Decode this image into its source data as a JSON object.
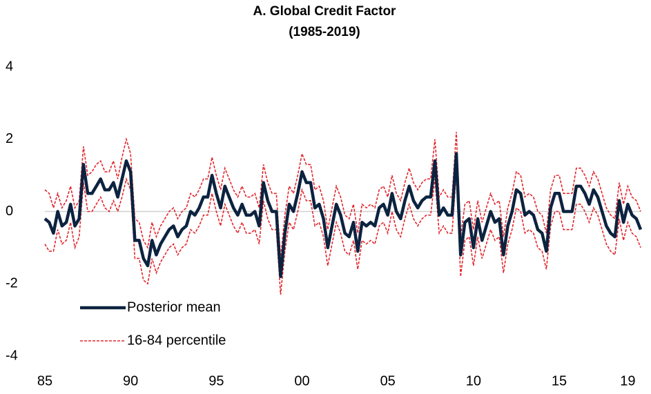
{
  "chart_data": {
    "type": "line",
    "title": "A. Global Credit Factor",
    "subtitle": "(1985-2019)",
    "x": [
      1985,
      1985.25,
      1985.5,
      1985.75,
      1986,
      1986.25,
      1986.5,
      1986.75,
      1987,
      1987.25,
      1987.5,
      1987.75,
      1988,
      1988.25,
      1988.5,
      1988.75,
      1989,
      1989.25,
      1989.5,
      1989.75,
      1990,
      1990.25,
      1990.5,
      1990.75,
      1991,
      1991.25,
      1991.5,
      1991.75,
      1992,
      1992.25,
      1992.5,
      1992.75,
      1993,
      1993.25,
      1993.5,
      1993.75,
      1994,
      1994.25,
      1994.5,
      1994.75,
      1995,
      1995.25,
      1995.5,
      1995.75,
      1996,
      1996.25,
      1996.5,
      1996.75,
      1997,
      1997.25,
      1997.5,
      1997.75,
      1998,
      1998.25,
      1998.5,
      1998.75,
      1999,
      1999.25,
      1999.5,
      1999.75,
      2000,
      2000.25,
      2000.5,
      2000.75,
      2001,
      2001.25,
      2001.5,
      2001.75,
      2002,
      2002.25,
      2002.5,
      2002.75,
      2003,
      2003.25,
      2003.5,
      2003.75,
      2004,
      2004.25,
      2004.5,
      2004.75,
      2005,
      2005.25,
      2005.5,
      2005.75,
      2006,
      2006.25,
      2006.5,
      2006.75,
      2007,
      2007.25,
      2007.5,
      2007.75,
      2008,
      2008.25,
      2008.5,
      2008.75,
      2009,
      2009.25,
      2009.5,
      2009.75,
      2010,
      2010.25,
      2010.5,
      2010.75,
      2011,
      2011.25,
      2011.5,
      2011.75,
      2012,
      2012.25,
      2012.5,
      2012.75,
      2013,
      2013.25,
      2013.5,
      2013.75,
      2014,
      2014.25,
      2014.5,
      2014.75,
      2015,
      2015.25,
      2015.5,
      2015.75,
      2016,
      2016.25,
      2016.5,
      2016.75,
      2017,
      2017.25,
      2017.5,
      2017.75,
      2018,
      2018.25,
      2018.5,
      2018.75,
      2019,
      2019.25,
      2019.5,
      2019.75
    ],
    "series": [
      {
        "name": "Posterior mean",
        "color": "#0c2340",
        "values": [
          -0.2,
          -0.3,
          -0.6,
          0.0,
          -0.4,
          -0.3,
          0.2,
          -0.4,
          -0.2,
          1.3,
          0.5,
          0.5,
          0.7,
          0.9,
          0.6,
          0.6,
          0.8,
          0.4,
          0.9,
          1.4,
          1.1,
          -0.8,
          -0.8,
          -1.3,
          -1.5,
          -0.8,
          -1.2,
          -0.9,
          -0.7,
          -0.5,
          -0.4,
          -0.7,
          -0.5,
          -0.4,
          0.0,
          -0.1,
          0.1,
          0.4,
          0.4,
          1.0,
          0.5,
          0.1,
          0.7,
          0.4,
          0.1,
          -0.1,
          0.2,
          -0.1,
          -0.1,
          0.0,
          -0.4,
          0.8,
          0.3,
          0.0,
          0.0,
          -1.8,
          -0.6,
          0.2,
          0.0,
          0.5,
          1.1,
          0.8,
          0.8,
          0.1,
          0.2,
          -0.2,
          -1.0,
          -0.4,
          0.2,
          -0.1,
          -0.6,
          -0.7,
          -0.3,
          -1.1,
          -0.3,
          -0.4,
          -0.3,
          -0.4,
          0.1,
          0.2,
          -0.1,
          0.5,
          0.0,
          -0.2,
          0.3,
          0.7,
          0.3,
          0.1,
          0.3,
          0.4,
          0.4,
          1.4,
          -0.1,
          0.1,
          -0.1,
          -0.1,
          1.6,
          -1.2,
          -0.3,
          -0.2,
          -1.0,
          -0.2,
          -0.8,
          -0.4,
          0.0,
          -0.3,
          -0.2,
          -1.2,
          -0.4,
          0.0,
          0.6,
          0.5,
          -0.1,
          0.0,
          -0.1,
          -0.5,
          -0.6,
          -1.1,
          0.1,
          0.5,
          0.5,
          0.0,
          0.0,
          0.0,
          0.7,
          0.7,
          0.5,
          0.2,
          0.6,
          0.4,
          0.0,
          -0.4,
          -0.6,
          -0.7,
          0.3,
          -0.3,
          0.2,
          -0.1,
          -0.2,
          -0.5
        ]
      },
      {
        "name": "16-84 percentile",
        "color": "#e3262d",
        "upper": [
          0.6,
          0.5,
          0.1,
          0.5,
          0.1,
          0.3,
          0.7,
          0.1,
          0.3,
          1.8,
          1.0,
          1.1,
          1.3,
          1.4,
          1.1,
          1.1,
          1.4,
          0.9,
          1.5,
          2.0,
          1.6,
          -0.2,
          -0.3,
          -0.8,
          -1.0,
          -0.3,
          -0.7,
          -0.4,
          -0.2,
          0.0,
          0.1,
          -0.2,
          0.0,
          0.1,
          0.5,
          0.4,
          0.6,
          0.9,
          0.9,
          1.5,
          1.0,
          0.6,
          1.2,
          0.9,
          0.6,
          0.4,
          0.7,
          0.4,
          0.4,
          0.5,
          0.1,
          1.3,
          0.8,
          0.5,
          0.5,
          -1.3,
          -0.1,
          0.7,
          0.5,
          1.0,
          1.6,
          1.3,
          1.3,
          0.6,
          0.7,
          0.3,
          -0.5,
          0.1,
          0.7,
          0.4,
          -0.1,
          -0.2,
          0.2,
          -0.6,
          0.2,
          0.1,
          0.2,
          0.1,
          0.6,
          0.7,
          0.4,
          1.0,
          0.5,
          0.3,
          0.8,
          1.2,
          0.8,
          0.6,
          0.8,
          0.9,
          0.9,
          2.0,
          0.4,
          0.6,
          0.4,
          0.4,
          2.2,
          -0.7,
          0.2,
          0.3,
          -0.5,
          0.3,
          -0.3,
          0.1,
          0.5,
          0.2,
          0.3,
          -0.7,
          0.1,
          0.5,
          1.1,
          1.0,
          0.4,
          0.5,
          0.4,
          0.0,
          -0.1,
          -0.6,
          0.6,
          1.0,
          1.0,
          0.5,
          0.5,
          0.5,
          1.2,
          1.2,
          1.0,
          0.7,
          1.1,
          0.9,
          0.5,
          0.1,
          -0.1,
          -0.2,
          0.8,
          0.2,
          0.7,
          0.4,
          0.3,
          0.0
        ],
        "lower": [
          -0.9,
          -1.1,
          -1.1,
          -0.5,
          -0.9,
          -0.8,
          -0.3,
          -1.0,
          -0.7,
          0.8,
          0.0,
          0.0,
          0.2,
          0.4,
          0.1,
          0.0,
          0.3,
          0.0,
          0.4,
          0.9,
          0.6,
          -1.3,
          -1.3,
          -1.9,
          -2.0,
          -1.3,
          -1.7,
          -1.4,
          -1.2,
          -1.0,
          -0.9,
          -1.2,
          -1.0,
          -0.9,
          -0.5,
          -0.6,
          -0.4,
          -0.1,
          -0.1,
          0.5,
          0.0,
          -0.4,
          0.2,
          -0.1,
          -0.4,
          -0.6,
          -0.3,
          -0.6,
          -0.6,
          -0.5,
          -0.9,
          0.3,
          -0.2,
          -0.5,
          -0.5,
          -2.3,
          -1.1,
          -0.3,
          -0.5,
          0.0,
          0.6,
          0.3,
          0.3,
          -0.4,
          -0.3,
          -0.7,
          -1.5,
          -0.9,
          -0.3,
          -0.6,
          -1.1,
          -1.2,
          -0.8,
          -1.6,
          -0.8,
          -0.9,
          -0.8,
          -0.9,
          -0.4,
          -0.3,
          -0.6,
          0.0,
          -0.5,
          -0.7,
          -0.2,
          0.2,
          -0.2,
          -0.4,
          -0.2,
          -0.1,
          -0.1,
          0.9,
          -0.6,
          -0.4,
          -0.6,
          -0.6,
          1.1,
          -1.8,
          -0.8,
          -0.7,
          -1.5,
          -0.7,
          -1.3,
          -0.9,
          -0.5,
          -0.8,
          -0.7,
          -1.7,
          -0.9,
          -0.5,
          0.1,
          0.0,
          -0.6,
          -0.5,
          -0.6,
          -1.0,
          -1.1,
          -1.6,
          -0.4,
          0.0,
          0.0,
          -0.5,
          -0.5,
          -0.5,
          0.2,
          0.2,
          0.0,
          -0.3,
          0.1,
          -0.1,
          -0.5,
          -0.9,
          -1.1,
          -1.2,
          -0.2,
          -0.8,
          -0.3,
          -0.6,
          -0.7,
          -1.0
        ]
      }
    ],
    "xlim": [
      1985,
      2019.75
    ],
    "xticks": [
      {
        "value": 1985,
        "label": "85"
      },
      {
        "value": 1990,
        "label": "90"
      },
      {
        "value": 1995,
        "label": "95"
      },
      {
        "value": 2000,
        "label": "00"
      },
      {
        "value": 2005,
        "label": "05"
      },
      {
        "value": 2010,
        "label": "10"
      },
      {
        "value": 2015,
        "label": "15"
      },
      {
        "value": 2019,
        "label": "19"
      }
    ],
    "ylim": [
      -4,
      4
    ],
    "yticks": [
      -4,
      -2,
      0,
      2,
      4
    ],
    "zero_line": true,
    "legend": "lower left"
  }
}
